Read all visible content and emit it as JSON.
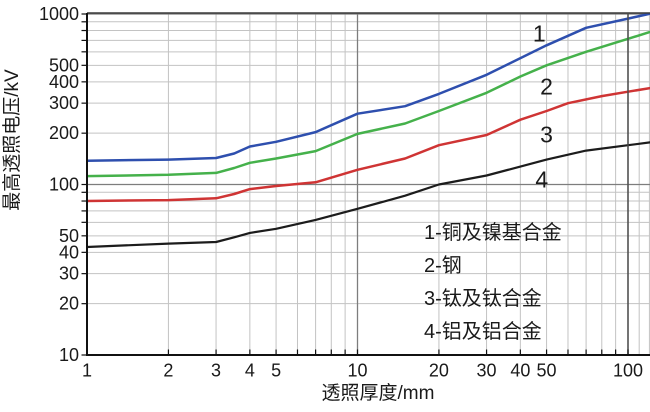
{
  "chart_data": {
    "type": "line",
    "title": "",
    "xlabel": "透照厚度/mm",
    "ylabel": "最高透照电压/kV",
    "x_scale": "log",
    "y_scale": "log",
    "xlim": [
      1,
      100
    ],
    "ylim": [
      10,
      1000
    ],
    "x_ticks": [
      1,
      2,
      3,
      4,
      5,
      10,
      20,
      30,
      40,
      50,
      100
    ],
    "y_ticks": [
      10,
      20,
      30,
      40,
      50,
      100,
      200,
      300,
      400,
      500,
      1000
    ],
    "grid": {
      "minor": true,
      "major": true,
      "minor_color": "#c3c3c3",
      "major_color": "#7d7d7d",
      "axis_color": "#111111"
    },
    "series": [
      {
        "id": "1",
        "name": "铜及镍基合金",
        "color": "#2e4fae",
        "points": [
          [
            1,
            138
          ],
          [
            2,
            140
          ],
          [
            3,
            143
          ],
          [
            3.5,
            152
          ],
          [
            4,
            167
          ],
          [
            5,
            178
          ],
          [
            7,
            203
          ],
          [
            10,
            260
          ],
          [
            15,
            288
          ],
          [
            20,
            340
          ],
          [
            30,
            440
          ],
          [
            50,
            655
          ],
          [
            70,
            830
          ],
          [
            100,
            940
          ]
        ]
      },
      {
        "id": "2",
        "name": "钢",
        "color": "#45b14b",
        "points": [
          [
            1,
            112
          ],
          [
            2,
            114
          ],
          [
            3,
            117
          ],
          [
            3.5,
            125
          ],
          [
            4,
            134
          ],
          [
            5,
            142
          ],
          [
            7,
            157
          ],
          [
            10,
            198
          ],
          [
            15,
            228
          ],
          [
            20,
            270
          ],
          [
            30,
            345
          ],
          [
            40,
            430
          ],
          [
            50,
            500
          ],
          [
            70,
            600
          ],
          [
            100,
            715
          ]
        ]
      },
      {
        "id": "3",
        "name": "钛及钛合金",
        "color": "#cf3434",
        "points": [
          [
            1,
            80
          ],
          [
            2,
            81
          ],
          [
            3,
            83
          ],
          [
            3.5,
            88
          ],
          [
            4,
            94
          ],
          [
            5,
            98
          ],
          [
            7,
            103
          ],
          [
            10,
            122
          ],
          [
            15,
            142
          ],
          [
            20,
            170
          ],
          [
            30,
            195
          ],
          [
            40,
            240
          ],
          [
            50,
            270
          ],
          [
            60,
            300
          ],
          [
            80,
            330
          ],
          [
            100,
            350
          ]
        ]
      },
      {
        "id": "4",
        "name": "铝及铝合金",
        "color": "#1c1c1c",
        "points": [
          [
            1,
            43
          ],
          [
            2,
            45
          ],
          [
            3,
            46
          ],
          [
            3.5,
            49
          ],
          [
            4,
            52
          ],
          [
            5,
            55
          ],
          [
            7,
            62
          ],
          [
            10,
            72
          ],
          [
            15,
            86
          ],
          [
            20,
            100
          ],
          [
            30,
            113
          ],
          [
            50,
            140
          ],
          [
            70,
            158
          ],
          [
            100,
            170
          ]
        ]
      }
    ],
    "curve_labels": [
      {
        "text": "1",
        "x": 47,
        "y": 770
      },
      {
        "text": "2",
        "x": 50,
        "y": 375
      },
      {
        "text": "3",
        "x": 50,
        "y": 197
      },
      {
        "text": "4",
        "x": 48,
        "y": 107
      }
    ],
    "legend": {
      "position": "inside-bottom-right",
      "items": [
        "1-铜及镍基合金",
        "2-钢",
        "3-钛及钛合金",
        "4-铝及铝合金"
      ]
    }
  }
}
